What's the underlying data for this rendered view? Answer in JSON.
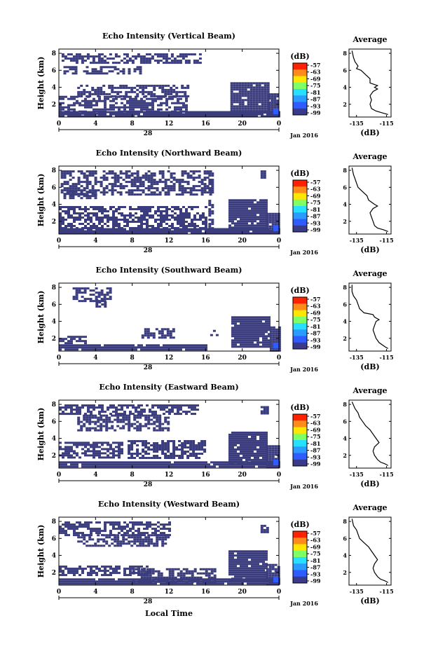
{
  "chart_data": {
    "type": "heatmap",
    "colorbar": {
      "unit_label": "(dB)",
      "tick_labels": [
        "-57",
        "-63",
        "-69",
        "-75",
        "-81",
        "-87",
        "-93",
        "-99"
      ],
      "colors": [
        "#ff2200",
        "#ff8c1a",
        "#ffe600",
        "#7fff66",
        "#27e0ff",
        "#2b9cff",
        "#2f5cff",
        "#3a3a8a"
      ],
      "range": [
        -99,
        -57
      ]
    },
    "mask_color": "#3a3c7e",
    "panels": [
      {
        "title": "Echo Intensity (Vertical Beam)",
        "ylabel": "Height (km)",
        "y_ticks": [
          "2",
          "4",
          "6",
          "8"
        ],
        "x_ticks": [
          "0",
          "4",
          "8",
          "12",
          "16",
          "20",
          "0"
        ],
        "date_label": "28",
        "month_label": "Jan 2016",
        "xlim": [
          0,
          24
        ],
        "ylim": [
          0.5,
          8.5
        ],
        "echo_regions": [
          {
            "x": [
              0.3,
              15.3
            ],
            "y": [
              6.8,
              8.0
            ]
          },
          {
            "x": [
              0.5,
              9.0
            ],
            "y": [
              5.6,
              6.5
            ]
          },
          {
            "x": [
              2.0,
              14.0
            ],
            "y": [
              3.0,
              4.3
            ]
          },
          {
            "x": 0,
            "y": 0
          },
          {
            "x": [
              0.0,
              14.0
            ],
            "y": [
              1.0,
              3.0
            ]
          },
          {
            "x": [
              0.0,
              24.0
            ],
            "y": [
              0.6,
              1.2
            ]
          },
          {
            "x": [
              18.7,
              22.7
            ],
            "y": [
              1.0,
              4.6
            ]
          },
          {
            "x": [
              22.8,
              24.0
            ],
            "y": [
              0.6,
              3.3
            ]
          }
        ],
        "average_profile": {
          "title": "Average",
          "xlabel": "(dB)",
          "x_ticks": [
            "-135",
            "-115"
          ],
          "y_ticks": [
            "2",
            "4",
            "6",
            "8"
          ],
          "xlim": [
            -140,
            -112
          ],
          "ylim": [
            0.5,
            8.5
          ],
          "height_km": [
            8.3,
            7.5,
            7.0,
            6.5,
            6.2,
            6.0,
            5.5,
            5.0,
            4.5,
            4.2,
            4.0,
            3.8,
            3.5,
            3.0,
            2.5,
            2.0,
            1.5,
            1.2,
            1.0,
            0.8
          ],
          "value_db": [
            -138,
            -137,
            -136,
            -134,
            -135,
            -132,
            -129,
            -126,
            -126,
            -121,
            -123,
            -121,
            -124,
            -126,
            -125,
            -126,
            -125,
            -122,
            -118,
            -114
          ]
        }
      },
      {
        "title": "Echo Intensity (Northward Beam)",
        "ylabel": "Height (km)",
        "y_ticks": [
          "2",
          "4",
          "6",
          "8"
        ],
        "x_ticks": [
          "0",
          "4",
          "8",
          "12",
          "16",
          "20",
          "0"
        ],
        "date_label": "28",
        "month_label": "Jan 2016",
        "xlim": [
          0,
          24
        ],
        "ylim": [
          0.5,
          8.5
        ],
        "echo_regions": [
          {
            "x": [
              0.2,
              16.5
            ],
            "y": [
              5.2,
              8.0
            ]
          },
          {
            "x": [
              0.5,
              4.0
            ],
            "y": [
              4.8,
              5.6
            ]
          },
          {
            "x": [
              0.0,
              16.0
            ],
            "y": [
              1.0,
              3.8
            ]
          },
          {
            "x": [
              16.3,
              16.7
            ],
            "y": [
              1.0,
              8.0
            ]
          },
          {
            "x": [
              0.0,
              24.0
            ],
            "y": [
              0.6,
              1.2
            ]
          },
          {
            "x": [
              18.5,
              22.5
            ],
            "y": [
              1.0,
              4.6
            ]
          },
          {
            "x": [
              22.6,
              24.0
            ],
            "y": [
              0.6,
              3.0
            ]
          },
          {
            "x": [
              22.0,
              22.6
            ],
            "y": [
              7.2,
              8.0
            ]
          }
        ],
        "average_profile": {
          "title": "Average",
          "xlabel": "(dB)",
          "x_ticks": [
            "-135",
            "-115"
          ],
          "y_ticks": [
            "2",
            "4",
            "6",
            "8"
          ],
          "xlim": [
            -140,
            -112
          ],
          "ylim": [
            0.5,
            8.5
          ],
          "height_km": [
            8.3,
            7.5,
            7.0,
            6.5,
            6.0,
            5.5,
            5.0,
            4.5,
            4.0,
            3.8,
            3.5,
            3.0,
            2.5,
            2.0,
            1.5,
            1.2,
            1.0,
            0.8
          ],
          "value_db": [
            -138,
            -137,
            -136,
            -135,
            -134,
            -131,
            -128,
            -127,
            -123,
            -121,
            -124,
            -126,
            -125,
            -124,
            -123,
            -121,
            -117,
            -114
          ]
        }
      },
      {
        "title": "Echo Intensity (Southward Beam)",
        "ylabel": "Height (km)",
        "y_ticks": [
          "2",
          "4",
          "6",
          "8"
        ],
        "x_ticks": [
          "0",
          "4",
          "8",
          "12",
          "16",
          "20",
          "0"
        ],
        "date_label": "28",
        "month_label": "Jan 2016",
        "xlim": [
          0,
          24
        ],
        "ylim": [
          0.5,
          8.5
        ],
        "echo_regions": [
          {
            "x": [
              1.5,
              5.5
            ],
            "y": [
              6.5,
              8.0
            ]
          },
          {
            "x": [
              4.0,
              5.5
            ],
            "y": [
              5.8,
              6.6
            ]
          },
          {
            "x": [
              0.0,
              3.0
            ],
            "y": [
              1.4,
              2.3
            ]
          },
          {
            "x": [
              9.0,
              12.5
            ],
            "y": [
              2.0,
              3.2
            ]
          },
          {
            "x": [
              0.0,
              16.0
            ],
            "y": [
              0.6,
              1.3
            ]
          },
          {
            "x": [
              18.8,
              23.0
            ],
            "y": [
              1.0,
              4.6
            ]
          },
          {
            "x": [
              23.0,
              24.0
            ],
            "y": [
              0.6,
              3.4
            ]
          },
          {
            "x": [
              16.5,
              17.2
            ],
            "y": [
              2.3,
              3.0
            ]
          }
        ],
        "average_profile": {
          "title": "Average",
          "xlabel": "(dB)",
          "x_ticks": [
            "-135",
            "-115"
          ],
          "y_ticks": [
            "2",
            "4",
            "6",
            "8"
          ],
          "xlim": [
            -140,
            -112
          ],
          "ylim": [
            0.5,
            8.5
          ],
          "height_km": [
            8.3,
            7.5,
            7.0,
            6.5,
            6.0,
            5.5,
            5.0,
            4.8,
            4.5,
            4.2,
            4.0,
            3.5,
            3.0,
            2.5,
            2.0,
            1.5,
            1.0,
            0.8
          ],
          "value_db": [
            -138,
            -138,
            -137,
            -135,
            -134,
            -133,
            -130,
            -124,
            -123,
            -120,
            -122,
            -123,
            -124,
            -123,
            -122,
            -120,
            -116,
            -114
          ]
        }
      },
      {
        "title": "Echo Intensity (Eastward Beam)",
        "ylabel": "Height (km)",
        "y_ticks": [
          "2",
          "4",
          "6",
          "8"
        ],
        "x_ticks": [
          "0",
          "4",
          "8",
          "12",
          "16",
          "20",
          "0"
        ],
        "date_label": "28",
        "month_label": "Jan 2016",
        "xlim": [
          0,
          24
        ],
        "ylim": [
          0.5,
          8.5
        ],
        "echo_regions": [
          {
            "x": [
              0.0,
              15.0
            ],
            "y": [
              6.8,
              8.0
            ]
          },
          {
            "x": [
              2.0,
              12.0
            ],
            "y": [
              5.0,
              6.8
            ]
          },
          {
            "x": [
              0.0,
              7.0
            ],
            "y": [
              1.8,
              3.6
            ]
          },
          {
            "x": [
              7.5,
              16.0
            ],
            "y": [
              1.8,
              3.8
            ]
          },
          {
            "x": [
              0.0,
              24.0
            ],
            "y": [
              0.6,
              1.3
            ]
          },
          {
            "x": [
              18.5,
              22.5
            ],
            "y": [
              1.0,
              4.8
            ]
          },
          {
            "x": [
              22.6,
              24.0
            ],
            "y": [
              0.6,
              3.2
            ]
          },
          {
            "x": [
              22.0,
              22.8
            ],
            "y": [
              7.0,
              7.8
            ]
          }
        ],
        "average_profile": {
          "title": "Average",
          "xlabel": "(dB)",
          "x_ticks": [
            "-135",
            "-115"
          ],
          "y_ticks": [
            "2",
            "4",
            "6",
            "8"
          ],
          "xlim": [
            -140,
            -112
          ],
          "ylim": [
            0.5,
            8.5
          ],
          "height_km": [
            8.3,
            7.5,
            7.0,
            6.5,
            6.0,
            5.5,
            5.0,
            4.5,
            4.0,
            3.5,
            3.0,
            2.5,
            2.0,
            1.5,
            1.2,
            1.0,
            0.8
          ],
          "value_db": [
            -138,
            -136,
            -134,
            -133,
            -131,
            -129,
            -126,
            -124,
            -122,
            -120,
            -123,
            -124,
            -123,
            -121,
            -119,
            -116,
            -114
          ]
        }
      },
      {
        "title": "Echo Intensity (Westward Beam)",
        "ylabel": "Height (km)",
        "y_ticks": [
          "2",
          "4",
          "6",
          "8"
        ],
        "x_ticks": [
          "0",
          "4",
          "8",
          "12",
          "16",
          "20",
          "0"
        ],
        "date_label": "28",
        "month_label": "Jan 2016",
        "xlabel": "Local Time",
        "xlim": [
          0,
          24
        ],
        "ylim": [
          0.5,
          8.5
        ],
        "echo_regions": [
          {
            "x": [
              0.0,
              12.0
            ],
            "y": [
              6.5,
              8.0
            ]
          },
          {
            "x": [
              2.0,
              12.0
            ],
            "y": [
              5.2,
              6.5
            ]
          },
          {
            "x": [
              0.0,
              10.0
            ],
            "y": [
              1.8,
              2.8
            ]
          },
          {
            "x": [
              8.0,
              17.0
            ],
            "y": [
              1.0,
              2.5
            ]
          },
          {
            "x": [
              0.0,
              24.0
            ],
            "y": [
              0.6,
              1.3
            ]
          },
          {
            "x": [
              18.5,
              22.5
            ],
            "y": [
              1.0,
              4.6
            ]
          },
          {
            "x": [
              22.6,
              24.0
            ],
            "y": [
              0.6,
              3.0
            ]
          },
          {
            "x": [
              22.0,
              22.8
            ],
            "y": [
              6.8,
              7.6
            ]
          }
        ],
        "average_profile": {
          "title": "Average",
          "xlabel": "(dB)",
          "x_ticks": [
            "-135",
            "-115"
          ],
          "y_ticks": [
            "2",
            "4",
            "6",
            "8"
          ],
          "xlim": [
            -140,
            -112
          ],
          "ylim": [
            0.5,
            8.5
          ],
          "height_km": [
            8.3,
            7.5,
            7.0,
            6.5,
            6.0,
            5.5,
            5.0,
            4.5,
            4.0,
            3.5,
            3.0,
            2.5,
            2.0,
            1.5,
            1.2,
            1.0,
            0.8
          ],
          "value_db": [
            -138,
            -137,
            -135,
            -134,
            -133,
            -130,
            -127,
            -125,
            -123,
            -121,
            -123,
            -124,
            -123,
            -121,
            -119,
            -116,
            -114
          ]
        }
      }
    ]
  }
}
